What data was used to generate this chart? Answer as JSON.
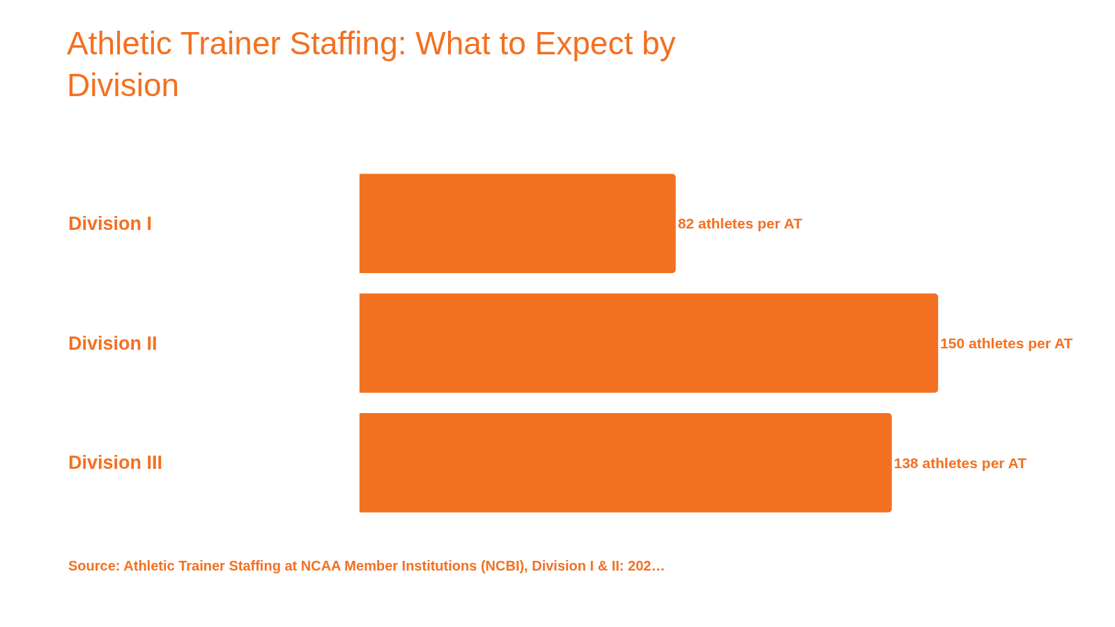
{
  "chart_data": {
    "type": "bar",
    "orientation": "horizontal",
    "title": "Athletic Trainer Staffing: What to Expect by\nDivision",
    "categories": [
      "Division I",
      "Division II",
      "Division III"
    ],
    "values": [
      82,
      150,
      138
    ],
    "value_labels": [
      "82 athletes per AT",
      "150 athletes per AT",
      "138 athletes per AT"
    ],
    "color": "#f37021",
    "annotations": [
      "Source: Athletic Trainer Staffing at NCAA Member Institutions (NCBI), Division I & II: 202…"
    ]
  }
}
